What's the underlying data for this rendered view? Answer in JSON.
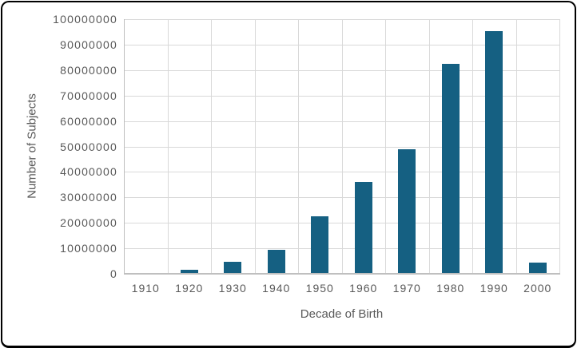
{
  "chart_data": {
    "type": "bar",
    "title": "",
    "categories": [
      "1910",
      "1920",
      "1930",
      "1940",
      "1950",
      "1960",
      "1970",
      "1980",
      "1990",
      "2000"
    ],
    "values": [
      0,
      1500000,
      4600000,
      9500000,
      22600000,
      36000000,
      49000000,
      82500000,
      95300000,
      4400000
    ],
    "xlabel": "Decade of Birth",
    "ylabel": "Number of Subjects",
    "ylim": [
      0,
      100000000
    ],
    "ytick_step": 10000000,
    "grid": "horizontal and vertical major gridlines",
    "legend_position": "none",
    "bar_color": "#156082"
  },
  "y_axis": {
    "title": "Number of Subjects",
    "tick_labels": [
      "0",
      "10000000",
      "20000000",
      "30000000",
      "40000000",
      "50000000",
      "60000000",
      "70000000",
      "80000000",
      "90000000",
      "100000000"
    ]
  },
  "x_axis": {
    "title": "Decade of Birth",
    "tick_labels": [
      "1910",
      "1920",
      "1930",
      "1940",
      "1950",
      "1960",
      "1970",
      "1980",
      "1990",
      "2000"
    ]
  },
  "colors": {
    "bar": "#156082",
    "gridline": "#D9D9D9",
    "axis_line": "#BFBFBF",
    "text": "#595959",
    "border": "#000000",
    "background": "#FFFFFF"
  }
}
